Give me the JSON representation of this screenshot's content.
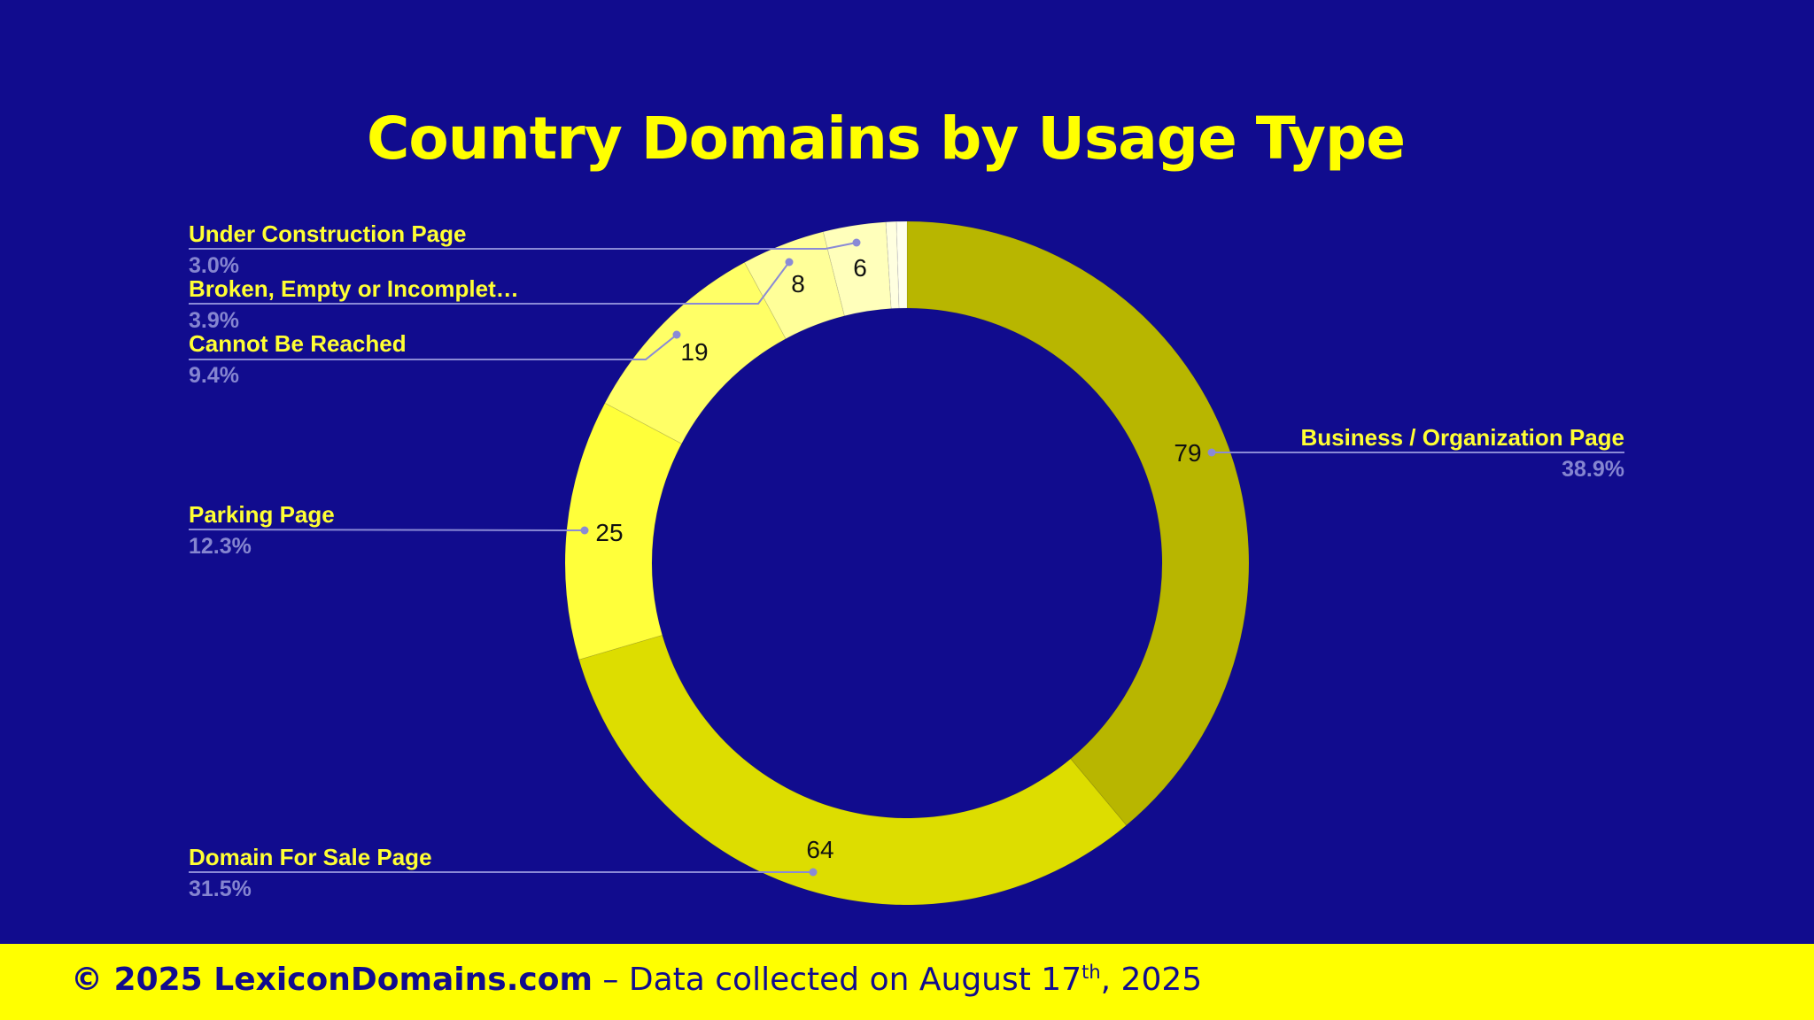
{
  "chart_data": {
    "type": "pie",
    "style": "donut",
    "title": "Country Domains by Usage Type",
    "slices": [
      {
        "label": "Business / Organization Page",
        "value": 79,
        "percent": "38.9%",
        "color": "#b8b600"
      },
      {
        "label": "Domain For Sale Page",
        "value": 64,
        "percent": "31.5%",
        "color": "#dddd00"
      },
      {
        "label": "Parking Page",
        "value": 25,
        "percent": "12.3%",
        "color": "#ffff3a"
      },
      {
        "label": "Cannot Be Reached",
        "value": 19,
        "percent": "9.4%",
        "color": "#ffff66"
      },
      {
        "label": "Broken, Empty or Incomplet…",
        "value": 8,
        "percent": "3.9%",
        "color": "#ffff99"
      },
      {
        "label": "Under Construction Page",
        "value": 6,
        "percent": "3.0%",
        "color": "#ffffbb"
      },
      {
        "label": "",
        "value": 1,
        "percent": "",
        "color": "#ffffe0"
      },
      {
        "label": "",
        "value": 1,
        "percent": "",
        "color": "#ffffee"
      }
    ],
    "legend": "leader-line labels"
  },
  "footer": {
    "copyright": "© 2025 LexiconDomains.com",
    "collected_prefix": "– Data collected on August 17",
    "collected_sup": "th",
    "collected_suffix": ", 2025"
  }
}
